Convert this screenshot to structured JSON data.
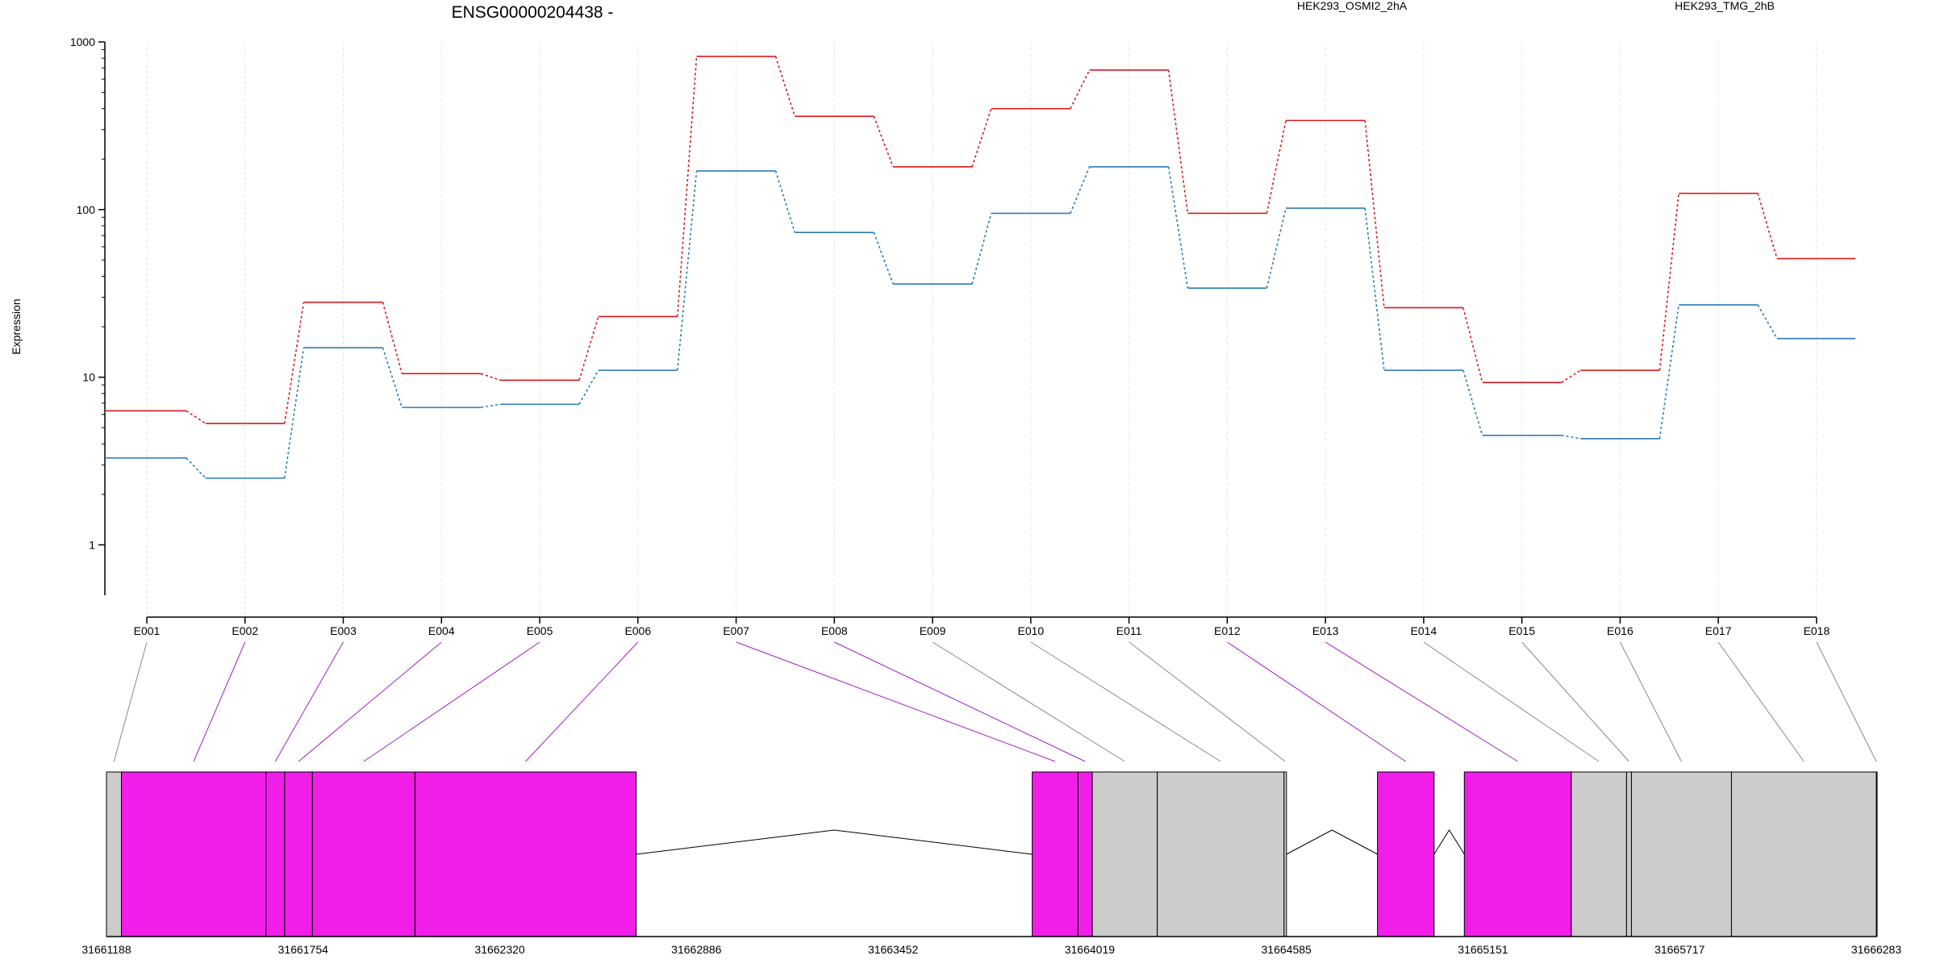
{
  "chart_data": {
    "type": "line",
    "title": "ENSG00000204438 -",
    "ylabel": "Expression",
    "xlabel": "",
    "y_scale": "log",
    "ylim": [
      0.5,
      1000
    ],
    "y_ticks": [
      {
        "value": 1,
        "label": "1"
      },
      {
        "value": 10,
        "label": "10"
      },
      {
        "value": 100,
        "label": "100"
      },
      {
        "value": 1000,
        "label": "1000"
      }
    ],
    "categories": [
      "E001",
      "E002",
      "E003",
      "E004",
      "E005",
      "E006",
      "E007",
      "E008",
      "E009",
      "E010",
      "E011",
      "E012",
      "E013",
      "E014",
      "E015",
      "E016",
      "E017",
      "E018"
    ],
    "grid": "vertical dashed at each exon",
    "legend_placement": "top",
    "series": [
      {
        "name": "HEK293_OSMI2_2hA",
        "color": "#d7191c",
        "values": [
          6.3,
          5.3,
          28,
          10.5,
          9.6,
          23,
          820,
          360,
          180,
          400,
          680,
          95,
          340,
          26,
          9.3,
          11,
          125,
          51
        ]
      },
      {
        "name": "HEK293_TMG_2hB",
        "color": "#2c7bb6",
        "values": [
          3.3,
          2.5,
          15,
          6.6,
          6.9,
          11,
          170,
          73,
          36,
          95,
          180,
          34,
          102,
          11,
          4.5,
          4.3,
          27,
          17
        ]
      }
    ],
    "gene_model": {
      "type": "exon_track",
      "coordinate_labels": [
        "31661188",
        "31661754",
        "31662320",
        "31662886",
        "31663452",
        "31664019",
        "31664585",
        "31665151",
        "31665717",
        "31666283"
      ],
      "start": 31661188,
      "end": 31666283,
      "colors": {
        "highlighted": "#f01ee8",
        "normal": "#cccccc",
        "connector_highlight": "#a020c0",
        "connector_normal": "#888888"
      },
      "exons": [
        {
          "id": "E001",
          "start": 31661188,
          "end": 31661231,
          "highlighted": false
        },
        {
          "id": "E002",
          "start": 31661231,
          "end": 31661647,
          "highlighted": true
        },
        {
          "id": "E003",
          "start": 31661647,
          "end": 31661701,
          "highlighted": true
        },
        {
          "id": "E004",
          "start": 31661701,
          "end": 31661781,
          "highlighted": true
        },
        {
          "id": "E005",
          "start": 31661781,
          "end": 31662076,
          "highlighted": true
        },
        {
          "id": "E006",
          "start": 31662076,
          "end": 31662713,
          "highlighted": true
        },
        {
          "id": "E007",
          "start": 31663853,
          "end": 31663985,
          "highlighted": true
        },
        {
          "id": "E008",
          "start": 31663985,
          "end": 31664026,
          "highlighted": true
        },
        {
          "id": "E009",
          "start": 31664026,
          "end": 31664213,
          "highlighted": false
        },
        {
          "id": "E010",
          "start": 31664213,
          "end": 31664578,
          "highlighted": false
        },
        {
          "id": "E011",
          "start": 31664578,
          "end": 31664585,
          "highlighted": false
        },
        {
          "id": "E012",
          "start": 31664847,
          "end": 31665010,
          "highlighted": true
        },
        {
          "id": "E013",
          "start": 31665097,
          "end": 31665405,
          "highlighted": true
        },
        {
          "id": "E014",
          "start": 31665405,
          "end": 31665564,
          "highlighted": false
        },
        {
          "id": "E015",
          "start": 31665564,
          "end": 31665578,
          "highlighted": false
        },
        {
          "id": "E016",
          "start": 31665578,
          "end": 31665866,
          "highlighted": false
        },
        {
          "id": "E017",
          "start": 31665866,
          "end": 31666283,
          "highlighted": false
        },
        {
          "id": "E018",
          "start": 31666283,
          "end": 31666283,
          "highlighted": false
        }
      ],
      "introns": [
        {
          "start": 31662713,
          "end": 31663853
        },
        {
          "start": 31664585,
          "end": 31664847
        },
        {
          "start": 31665010,
          "end": 31665097
        }
      ]
    }
  }
}
